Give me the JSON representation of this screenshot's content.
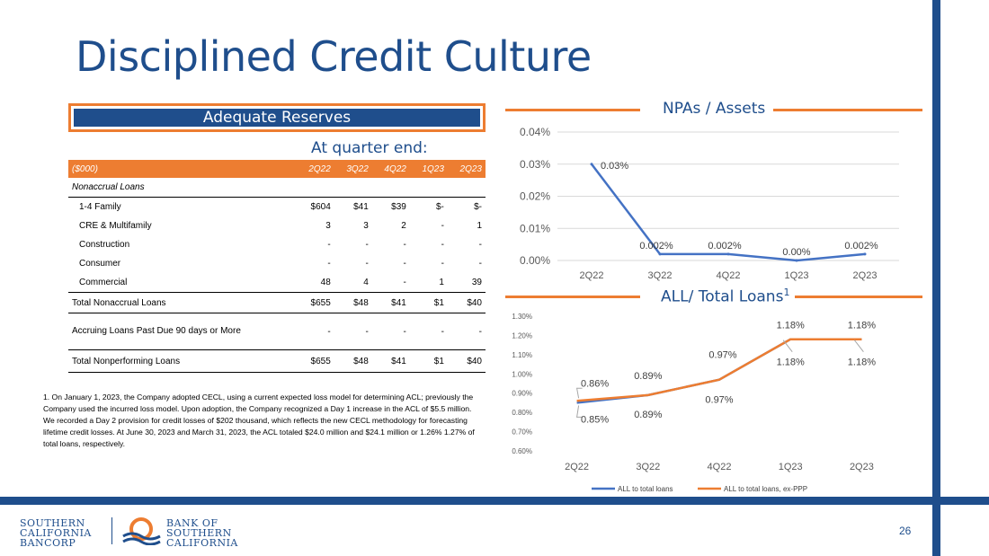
{
  "title": "Disciplined Credit Culture",
  "reserves_label": "Adequate Reserves",
  "quarter_label": "At quarter end:",
  "table": {
    "headers": [
      "($000)",
      "2Q22",
      "3Q22",
      "4Q22",
      "1Q23",
      "2Q23"
    ],
    "section": "Nonaccrual Loans",
    "rows": [
      {
        "label": "1-4 Family",
        "values": [
          "$604",
          "$41",
          "$39",
          "$-",
          "$-"
        ]
      },
      {
        "label": "CRE & Multifamily",
        "values": [
          "3",
          "3",
          "2",
          "-",
          "1"
        ]
      },
      {
        "label": "Construction",
        "values": [
          "-",
          "-",
          "-",
          "-",
          "-"
        ]
      },
      {
        "label": "Consumer",
        "values": [
          "-",
          "-",
          "-",
          "-",
          "-"
        ]
      },
      {
        "label": "Commercial",
        "values": [
          "48",
          "4",
          "-",
          "1",
          "39"
        ]
      }
    ],
    "total_nonaccrual": {
      "label": "Total Nonaccrual Loans",
      "values": [
        "$655",
        "$48",
        "$41",
        "$1",
        "$40"
      ]
    },
    "accruing": {
      "label": "Accruing Loans Past Due 90 days or More",
      "values": [
        "-",
        "-",
        "-",
        "-",
        "-"
      ]
    },
    "total_np": {
      "label": "Total Nonperforming Loans",
      "values": [
        "$655",
        "$48",
        "$41",
        "$1",
        "$40"
      ]
    }
  },
  "footnote": "1. On January 1, 2023, the Company adopted CECL, using a current expected loss model for determining ACL; previously the Company used the incurred loss model. Upon adoption, the Company recognized a Day 1 increase in the ACL of $5.5 million. We recorded a Day 2 provision for credit losses of $202 thousand, which reflects the new CECL methodology for forecasting lifetime credit losses. At June 30, 2023 and March 31, 2023, the ACL totaled $24.0 million and $24.1 million or 1.26% 1.27% of total loans, respectively.",
  "page_number": "26",
  "logo": {
    "left_lines": [
      "SOUTHERN",
      "CALIFORNIA",
      "BANCORP"
    ],
    "right_lines": [
      "BANK OF",
      "SOUTHERN",
      "CALIFORNIA"
    ]
  },
  "colors": {
    "navy": "#1f4e8c",
    "orange": "#ed7d31",
    "line_blue": "#4472c4"
  },
  "chart_data": [
    {
      "type": "line",
      "title": "NPAs / Assets",
      "categories": [
        "2Q22",
        "3Q22",
        "4Q22",
        "1Q23",
        "2Q23"
      ],
      "series": [
        {
          "values": [
            0.03,
            0.002,
            0.002,
            0.0,
            0.002
          ]
        }
      ],
      "data_labels": [
        "0.03%",
        "0.002%",
        "0.002%",
        "0.00%",
        "0.002%"
      ],
      "ylim": [
        0,
        0.04
      ],
      "yticks": [
        "0.00%",
        "0.01%",
        "0.02%",
        "0.03%",
        "0.04%"
      ],
      "grid": true
    },
    {
      "type": "line",
      "title": "ALL/ Total Loans",
      "title_sup": "1",
      "categories": [
        "2Q22",
        "3Q22",
        "4Q22",
        "1Q23",
        "2Q23"
      ],
      "series": [
        {
          "name": "ALL to total loans",
          "values": [
            0.85,
            0.89,
            0.97,
            1.18,
            1.18
          ],
          "labels": [
            "0.85%",
            "0.89%",
            "0.97%",
            "1.18%",
            "1.18%"
          ]
        },
        {
          "name": "ALL to total loans, ex-PPP",
          "values": [
            0.86,
            0.89,
            0.97,
            1.18,
            1.18
          ],
          "labels": [
            "0.86%",
            "0.89%",
            "0.97%",
            "1.18%",
            "1.18%"
          ]
        }
      ],
      "ylim": [
        0.6,
        1.3
      ],
      "yticks": [
        "0.60%",
        "0.70%",
        "0.80%",
        "0.90%",
        "1.00%",
        "1.10%",
        "1.20%",
        "1.30%"
      ],
      "legend": "bottom",
      "grid": false
    }
  ]
}
